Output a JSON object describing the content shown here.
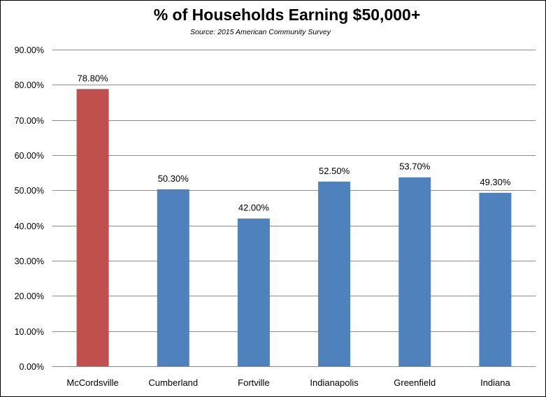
{
  "chart_data": {
    "type": "bar",
    "title": "% of Households Earning $50,000+",
    "subtitle": "Source: 2015 American Community Survey",
    "xlabel": "",
    "ylabel": "",
    "categories": [
      "McCordsville",
      "Cumberland",
      "Fortville",
      "Indianapolis",
      "Greenfield",
      "Indiana"
    ],
    "values": [
      78.8,
      50.3,
      42.0,
      52.5,
      53.7,
      49.3
    ],
    "data_labels": [
      "78.80%",
      "50.30%",
      "42.00%",
      "52.50%",
      "53.70%",
      "49.30%"
    ],
    "bar_colors": [
      "#C0504D",
      "#4F81BD",
      "#4F81BD",
      "#4F81BD",
      "#4F81BD",
      "#4F81BD"
    ],
    "ylim": [
      0,
      90
    ],
    "yticks": [
      0,
      10,
      20,
      30,
      40,
      50,
      60,
      70,
      80,
      90
    ],
    "ytick_labels": [
      "0.00%",
      "10.00%",
      "20.00%",
      "30.00%",
      "40.00%",
      "50.00%",
      "60.00%",
      "70.00%",
      "80.00%",
      "90.00%"
    ],
    "grid": true,
    "legend": "none",
    "gridline_color": "#8C8C8C"
  }
}
